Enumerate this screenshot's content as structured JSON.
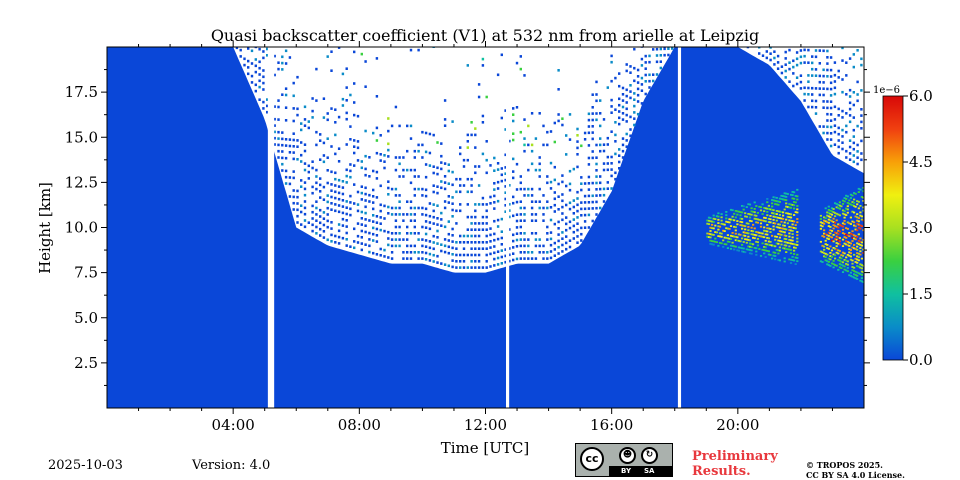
{
  "chart_data": {
    "type": "heatmap",
    "title": "Quasi backscatter coefficient (V1) at 532 nm from arielle at Leipzig",
    "xlabel": "Time [UTC]",
    "ylabel": "Height [km]",
    "xlim": [
      0,
      24
    ],
    "ylim": [
      0,
      20
    ],
    "x_ticks": [
      {
        "value": 4,
        "label": "04:00"
      },
      {
        "value": 8,
        "label": "08:00"
      },
      {
        "value": 12,
        "label": "12:00"
      },
      {
        "value": 16,
        "label": "16:00"
      },
      {
        "value": 20,
        "label": "20:00"
      }
    ],
    "y_ticks": [
      {
        "value": 2.5,
        "label": "2.5"
      },
      {
        "value": 5.0,
        "label": "5.0"
      },
      {
        "value": 7.5,
        "label": "7.5"
      },
      {
        "value": 10.0,
        "label": "10.0"
      },
      {
        "value": 12.5,
        "label": "12.5"
      },
      {
        "value": 15.0,
        "label": "15.0"
      },
      {
        "value": 17.5,
        "label": "17.5"
      }
    ],
    "colorbar": {
      "range": [
        0,
        6
      ],
      "ticks": [
        "0.0",
        "1.5",
        "3.0",
        "4.5",
        "6.0"
      ],
      "exponent_label": "1e−6",
      "colormap": [
        "#0a47d8",
        "#0a8cc8",
        "#10c0a0",
        "#3ad040",
        "#a8e020",
        "#f0f010",
        "#f8a008",
        "#f04010",
        "#d80808"
      ]
    },
    "data_gaps_hours": [
      [
        5.1,
        5.3
      ],
      [
        12.65,
        12.75
      ],
      [
        18.1,
        18.2
      ]
    ],
    "background_height_km": [
      [
        0.0,
        20
      ],
      [
        1.0,
        20
      ],
      [
        2.0,
        20
      ],
      [
        3.0,
        20
      ],
      [
        4.0,
        20
      ],
      [
        5.0,
        16
      ],
      [
        6.0,
        10
      ],
      [
        7.0,
        9
      ],
      [
        8.0,
        8.5
      ],
      [
        9.0,
        8
      ],
      [
        10.0,
        8
      ],
      [
        11.0,
        7.5
      ],
      [
        12.0,
        7.5
      ],
      [
        13.0,
        8
      ],
      [
        14.0,
        8
      ],
      [
        15.0,
        9
      ],
      [
        16.0,
        12
      ],
      [
        17.0,
        17
      ],
      [
        18.0,
        20
      ],
      [
        19.0,
        20
      ],
      [
        20.0,
        20
      ],
      [
        21.0,
        19
      ],
      [
        22.0,
        17
      ],
      [
        23.0,
        14
      ],
      [
        24.0,
        13
      ]
    ],
    "cloud_layers": [
      {
        "start": 19.0,
        "end": 21.9,
        "base_km": 7.8,
        "top_km": 12.0,
        "peak": 4.8
      },
      {
        "start": 22.6,
        "end": 24.0,
        "base_km": 6.8,
        "top_km": 12.3,
        "peak": 5.8
      }
    ]
  },
  "footer": {
    "date": "2025-10-03",
    "version": "Version: 4.0",
    "preliminary_line1": "Preliminary",
    "preliminary_line2": "Results.",
    "copyright_line1": "© TROPOS 2025.",
    "copyright_line2": "CC BY SA 4.0 License.",
    "license_badge": {
      "cc": "cc",
      "by": "BY",
      "sa": "SA"
    }
  },
  "colors": {
    "background_blue": "#0a47d8",
    "gap_white": "#ffffff",
    "prelim_red": "#e8383d"
  }
}
